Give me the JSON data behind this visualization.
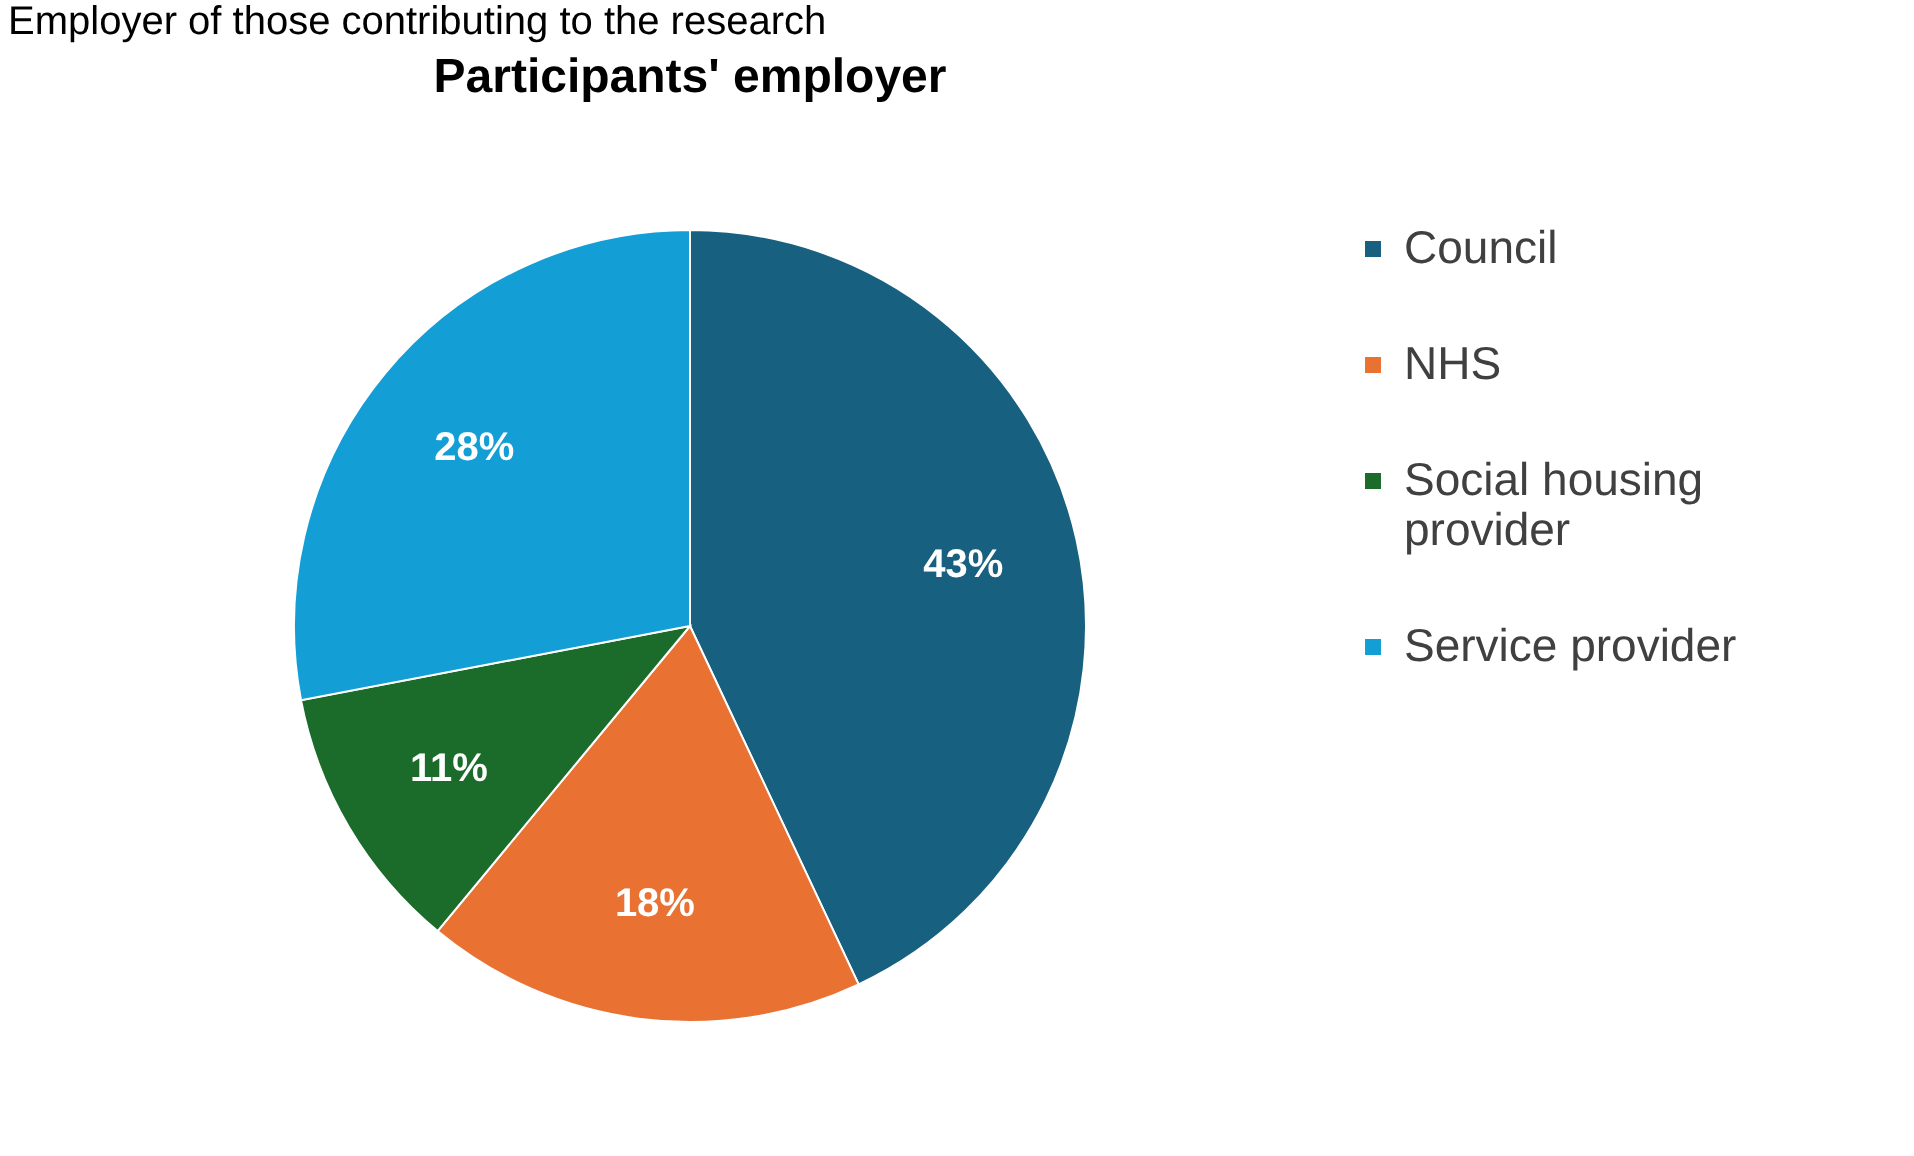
{
  "chart_data": {
    "type": "pie",
    "title": "Participants' employer",
    "annotations": [
      "Employer of those contributing to the research"
    ],
    "categories": [
      "Council",
      "NHS",
      "Social housing provider",
      "Service provider"
    ],
    "values": [
      43,
      18,
      11,
      28
    ],
    "colors": [
      "#17607f",
      "#e97132",
      "#1b6b2a",
      "#139fd6"
    ],
    "value_labels": [
      "43%",
      "18%",
      "11%",
      "28%"
    ],
    "legend": "right"
  }
}
